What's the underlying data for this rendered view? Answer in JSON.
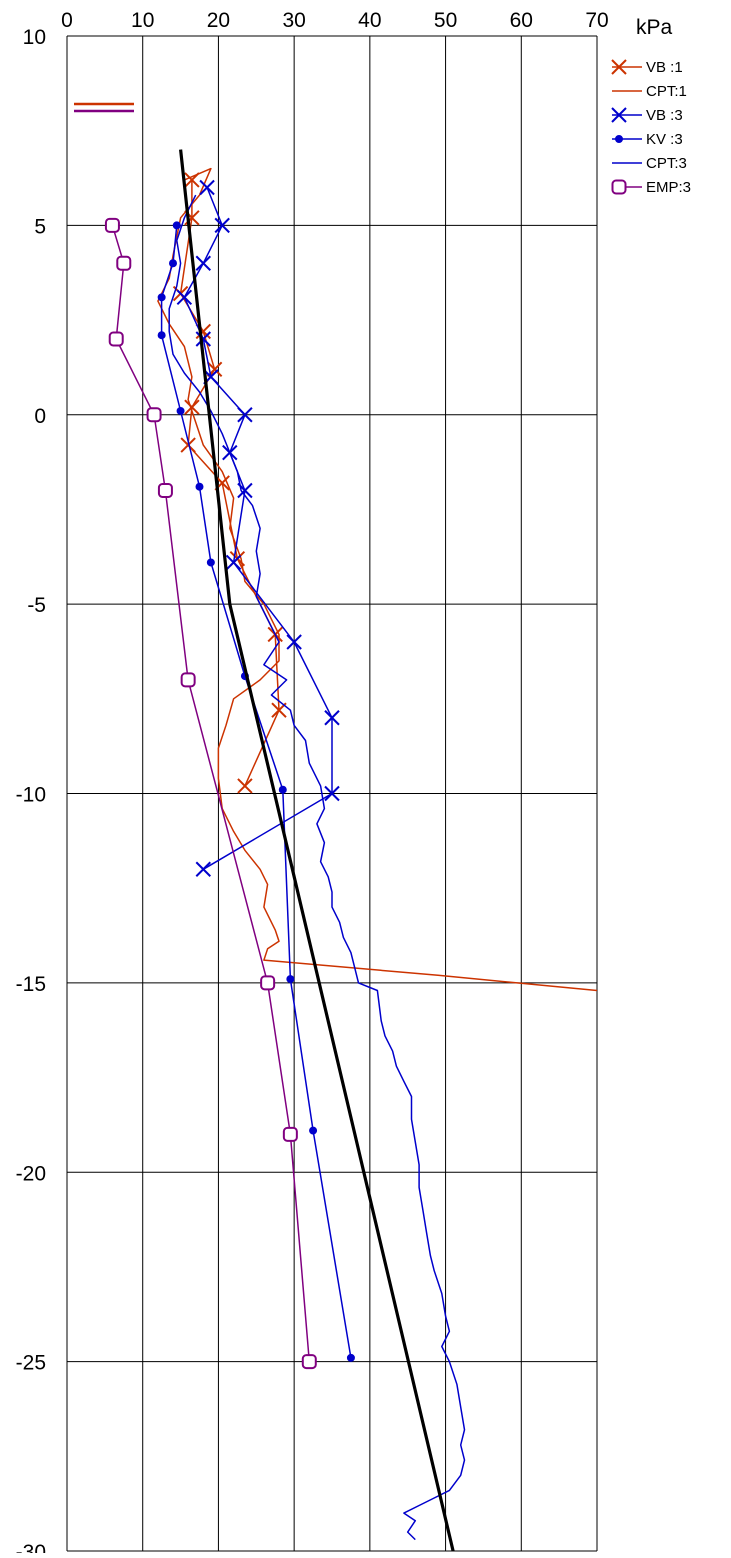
{
  "chart_data": {
    "type": "line",
    "title": "",
    "xlabel": "",
    "ylabel": "",
    "unit_label": "kPa",
    "x_axis_position": "top",
    "xlim": [
      0,
      70
    ],
    "ylim": [
      -30,
      10
    ],
    "x_ticks": [
      0,
      10,
      20,
      30,
      40,
      50,
      60,
      70
    ],
    "y_ticks": [
      10,
      5,
      0,
      -5,
      -10,
      -15,
      -20,
      -25,
      -30
    ],
    "x_tick_labels": [
      "0",
      "10",
      "20",
      "30",
      "40",
      "50",
      "60",
      "70"
    ],
    "y_tick_labels": [
      "10",
      "5",
      "0",
      "-5",
      "-10",
      "-15",
      "-20",
      "-25",
      "-30"
    ],
    "grid": true,
    "legend_position": "right",
    "legend_swatches_top_left": [
      "#cc3300",
      "#800080"
    ],
    "series": [
      {
        "name": "VB :1",
        "color": "#cc3300",
        "marker": "x",
        "points": [
          [
            16.5,
            6.2
          ],
          [
            16.5,
            5.2
          ],
          [
            15.0,
            3.2
          ],
          [
            18.0,
            2.2
          ],
          [
            19.5,
            1.2
          ],
          [
            16.5,
            0.2
          ],
          [
            16.0,
            -0.8
          ],
          [
            20.5,
            -1.8
          ],
          [
            22.5,
            -3.8
          ],
          [
            27.5,
            -5.8
          ],
          [
            28.0,
            -7.8
          ],
          [
            23.5,
            -9.8
          ]
        ]
      },
      {
        "name": "CPT:1",
        "color": "#cc3300",
        "marker": "none",
        "points": [
          [
            15.5,
            6.2
          ],
          [
            19.0,
            6.5
          ],
          [
            17.5,
            5.8
          ],
          [
            15.0,
            5.2
          ],
          [
            14.0,
            4.2
          ],
          [
            13.5,
            3.6
          ],
          [
            12.0,
            3.0
          ],
          [
            13.5,
            2.4
          ],
          [
            15.5,
            1.8
          ],
          [
            16.5,
            1.0
          ],
          [
            16.0,
            0.4
          ],
          [
            17.0,
            -0.2
          ],
          [
            18.0,
            -0.8
          ],
          [
            20.5,
            -1.5
          ],
          [
            22.0,
            -2.2
          ],
          [
            21.5,
            -3.0
          ],
          [
            23.0,
            -3.8
          ],
          [
            23.5,
            -4.4
          ],
          [
            26.0,
            -5.0
          ],
          [
            28.0,
            -5.8
          ],
          [
            28.0,
            -6.5
          ],
          [
            25.5,
            -7.0
          ],
          [
            22.0,
            -7.5
          ],
          [
            21.0,
            -8.2
          ],
          [
            20.0,
            -8.8
          ],
          [
            20.0,
            -9.6
          ],
          [
            20.5,
            -10.4
          ],
          [
            22.0,
            -11.0
          ],
          [
            23.5,
            -11.5
          ],
          [
            25.5,
            -12.0
          ],
          [
            26.5,
            -12.4
          ],
          [
            26.0,
            -13.0
          ],
          [
            27.5,
            -13.6
          ],
          [
            28.0,
            -13.9
          ],
          [
            26.5,
            -14.1
          ],
          [
            26.0,
            -14.4
          ],
          [
            49.0,
            -14.8
          ],
          [
            70.0,
            -15.2
          ]
        ]
      },
      {
        "name": "VB :3",
        "color": "#0000cc",
        "marker": "x",
        "points": [
          [
            18.5,
            6.0
          ],
          [
            20.5,
            5.0
          ],
          [
            18.0,
            4.0
          ],
          [
            15.5,
            3.1
          ],
          [
            18.0,
            2.0
          ],
          [
            19.0,
            1.0
          ],
          [
            23.5,
            0.0
          ],
          [
            21.5,
            -1.0
          ],
          [
            23.5,
            -2.0
          ],
          [
            22.0,
            -3.9
          ],
          [
            30.0,
            -6.0
          ],
          [
            35.0,
            -8.0
          ],
          [
            35.0,
            -10.0
          ],
          [
            18.0,
            -12.0
          ]
        ]
      },
      {
        "name": "KV :3",
        "color": "#0000cc",
        "marker": "dot",
        "points": [
          [
            14.5,
            5.0
          ],
          [
            14.0,
            4.0
          ],
          [
            12.5,
            3.1
          ],
          [
            12.5,
            2.1
          ],
          [
            15.0,
            0.1
          ],
          [
            17.5,
            -1.9
          ],
          [
            19.0,
            -3.9
          ],
          [
            23.5,
            -6.9
          ],
          [
            28.5,
            -9.9
          ],
          [
            29.5,
            -14.9
          ],
          [
            32.5,
            -18.9
          ],
          [
            37.5,
            -24.9
          ]
        ]
      },
      {
        "name": "CPT:3",
        "color": "#0000cc",
        "marker": "none",
        "points": [
          [
            17.0,
            5.8
          ],
          [
            15.5,
            5.2
          ],
          [
            14.5,
            4.6
          ],
          [
            15.0,
            4.0
          ],
          [
            14.5,
            3.4
          ],
          [
            13.5,
            2.8
          ],
          [
            13.5,
            2.2
          ],
          [
            14.0,
            1.6
          ],
          [
            15.5,
            1.1
          ],
          [
            17.5,
            0.6
          ],
          [
            19.0,
            0.1
          ],
          [
            20.5,
            -0.5
          ],
          [
            21.5,
            -1.0
          ],
          [
            22.5,
            -1.5
          ],
          [
            23.0,
            -2.0
          ],
          [
            24.5,
            -2.4
          ],
          [
            25.5,
            -3.0
          ],
          [
            25.0,
            -3.6
          ],
          [
            25.5,
            -4.2
          ],
          [
            25.0,
            -4.8
          ],
          [
            26.5,
            -5.4
          ],
          [
            28.0,
            -6.0
          ],
          [
            26.0,
            -6.6
          ],
          [
            29.0,
            -7.0
          ],
          [
            27.0,
            -7.4
          ],
          [
            29.5,
            -7.8
          ],
          [
            30.0,
            -8.2
          ],
          [
            31.5,
            -8.6
          ],
          [
            32.0,
            -9.2
          ],
          [
            33.5,
            -9.8
          ],
          [
            34.0,
            -10.4
          ],
          [
            33.0,
            -10.8
          ],
          [
            34.0,
            -11.3
          ],
          [
            33.5,
            -11.8
          ],
          [
            34.5,
            -12.2
          ],
          [
            35.0,
            -12.6
          ],
          [
            35.0,
            -13.0
          ],
          [
            36.0,
            -13.4
          ],
          [
            36.5,
            -13.8
          ],
          [
            37.5,
            -14.2
          ],
          [
            38.0,
            -14.6
          ],
          [
            38.5,
            -15.0
          ],
          [
            41.0,
            -15.2
          ],
          [
            41.5,
            -16.0
          ],
          [
            42.0,
            -16.4
          ],
          [
            43.0,
            -16.8
          ],
          [
            43.5,
            -17.2
          ],
          [
            44.5,
            -17.6
          ],
          [
            45.5,
            -18.0
          ],
          [
            45.5,
            -18.6
          ],
          [
            46.0,
            -19.2
          ],
          [
            46.5,
            -19.8
          ],
          [
            46.5,
            -20.4
          ],
          [
            47.0,
            -21.0
          ],
          [
            47.5,
            -21.6
          ],
          [
            48.0,
            -22.2
          ],
          [
            48.5,
            -22.6
          ],
          [
            49.5,
            -23.2
          ],
          [
            50.0,
            -23.8
          ],
          [
            50.5,
            -24.2
          ],
          [
            49.5,
            -24.6
          ],
          [
            50.5,
            -25.0
          ],
          [
            51.5,
            -25.6
          ],
          [
            52.0,
            -26.2
          ],
          [
            52.5,
            -26.8
          ],
          [
            52.0,
            -27.2
          ],
          [
            52.5,
            -27.6
          ],
          [
            52.0,
            -28.0
          ],
          [
            50.5,
            -28.4
          ],
          [
            48.5,
            -28.6
          ],
          [
            46.5,
            -28.8
          ],
          [
            44.5,
            -29.0
          ],
          [
            46.0,
            -29.2
          ],
          [
            45.0,
            -29.5
          ],
          [
            46.0,
            -29.7
          ]
        ]
      },
      {
        "name": "EMP:3",
        "color": "#800080",
        "marker": "square",
        "points": [
          [
            6.0,
            5.0
          ],
          [
            7.5,
            4.0
          ],
          [
            6.5,
            2.0
          ],
          [
            11.5,
            0.0
          ],
          [
            13.0,
            -2.0
          ],
          [
            16.0,
            -7.0
          ],
          [
            26.5,
            -15.0
          ],
          [
            29.5,
            -19.0
          ],
          [
            32.0,
            -25.0
          ]
        ]
      },
      {
        "name": "",
        "color": "#000000",
        "marker": "none",
        "points": [
          [
            15.0,
            7.0
          ],
          [
            21.5,
            -5.0
          ],
          [
            28.0,
            -10.5
          ],
          [
            51.0,
            -30.0
          ]
        ]
      }
    ]
  }
}
